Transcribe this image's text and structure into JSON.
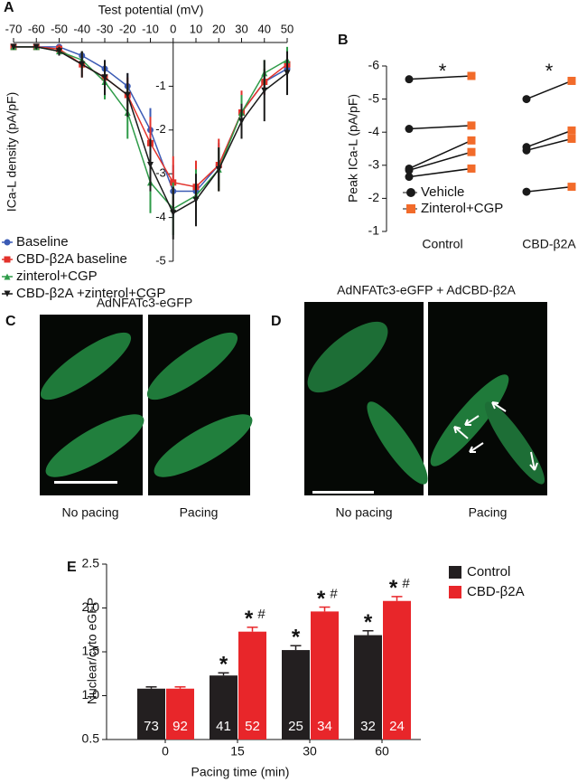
{
  "chart_data": [
    {
      "label": "A",
      "type": "line",
      "xlabel": "Test potential (mV)",
      "ylabel": "ICa-L density (pA/pF)",
      "x": [
        -70,
        -60,
        -50,
        -40,
        -30,
        -20,
        -10,
        0,
        10,
        20,
        30,
        40,
        50
      ],
      "xlim": [
        -70,
        50
      ],
      "xticks": [
        -70,
        -60,
        -50,
        -40,
        -30,
        -20,
        -10,
        0,
        10,
        20,
        30,
        40,
        50
      ],
      "ylim": [
        -5,
        0
      ],
      "yticks": [
        -1,
        -2,
        -3,
        -4,
        -5
      ],
      "series": [
        {
          "name": "Baseline",
          "color": "#3b5bb5",
          "marker": "circle",
          "values": [
            -0.1,
            -0.1,
            -0.1,
            -0.3,
            -0.6,
            -1.0,
            -2.0,
            -3.4,
            -3.4,
            -2.8,
            -1.6,
            -0.9,
            -0.6
          ],
          "errors": [
            0.05,
            0.05,
            0.05,
            0.1,
            0.2,
            0.3,
            0.5,
            0.6,
            0.5,
            0.5,
            0.4,
            0.3,
            0.2
          ]
        },
        {
          "name": "CBD-β2A baseline",
          "color": "#e3322b",
          "marker": "square",
          "values": [
            -0.1,
            -0.1,
            -0.15,
            -0.5,
            -0.8,
            -1.2,
            -2.3,
            -3.2,
            -3.3,
            -2.8,
            -1.6,
            -0.9,
            -0.5
          ],
          "errors": [
            0.05,
            0.05,
            0.1,
            0.3,
            0.3,
            0.4,
            0.6,
            0.6,
            0.6,
            0.6,
            0.5,
            0.3,
            0.3
          ]
        },
        {
          "name": "zinterol+CGP",
          "color": "#2e9b48",
          "marker": "triangle",
          "values": [
            -0.1,
            -0.1,
            -0.2,
            -0.4,
            -0.9,
            -1.6,
            -3.2,
            -3.8,
            -3.5,
            -2.9,
            -1.6,
            -0.7,
            -0.4
          ],
          "errors": [
            0.05,
            0.05,
            0.1,
            0.2,
            0.4,
            0.6,
            0.7,
            0.6,
            0.6,
            0.5,
            0.4,
            0.3,
            0.3
          ]
        },
        {
          "name": "CBD-β2A +zinterol+CGP",
          "color": "#1a1a1a",
          "marker": "invtriangle",
          "values": [
            -0.1,
            -0.1,
            -0.2,
            -0.5,
            -0.8,
            -1.2,
            -2.8,
            -3.9,
            -3.6,
            -2.9,
            -1.8,
            -1.1,
            -0.7
          ],
          "errors": [
            0.05,
            0.05,
            0.1,
            0.3,
            0.4,
            0.5,
            0.6,
            0.6,
            0.6,
            0.5,
            0.4,
            0.7,
            0.5
          ]
        }
      ]
    },
    {
      "label": "B",
      "type": "paired-dot",
      "ylabel": "Peak ICa-L (pA/pF)",
      "categories": [
        "Control",
        "CBD-β2A"
      ],
      "ylim": [
        -1,
        -6
      ],
      "yticks": [
        -6,
        -5,
        -4,
        -3,
        -2,
        -1
      ],
      "significance": [
        "*",
        "*"
      ],
      "series": [
        {
          "name": "Vehicle",
          "color": "#1a1a1a",
          "marker": "circle",
          "values": [
            [
              -5.6,
              -4.1,
              -2.9,
              -2.85,
              -2.65
            ],
            [
              -5.0,
              -3.55,
              -3.45,
              -2.2
            ]
          ]
        },
        {
          "name": "Zinterol+CGP",
          "color": "#f26b2a",
          "marker": "square",
          "values": [
            [
              -5.7,
              -4.2,
              -3.75,
              -3.4,
              -2.9
            ],
            [
              -5.55,
              -4.05,
              -3.8,
              -2.35
            ]
          ]
        }
      ]
    },
    {
      "label": "E",
      "type": "bar",
      "xlabel": "Pacing time (min)",
      "ylabel": "Nuclear/cyto eGFP",
      "categories": [
        "0",
        "15",
        "30",
        "60"
      ],
      "ylim": [
        0.5,
        2.5
      ],
      "yticks": [
        0.5,
        {
          "value": 1.0,
          "label": "1.0"
        },
        1.5,
        {
          "value": 2.0,
          "label": "2.0"
        },
        2.5
      ],
      "series": [
        {
          "name": "Control",
          "color": "#231f20",
          "values": [
            1.08,
            1.23,
            1.52,
            1.69
          ],
          "errors": [
            0.02,
            0.03,
            0.05,
            0.05
          ],
          "n": [
            "73",
            "41",
            "25",
            "32"
          ],
          "stars": [
            null,
            "*",
            "*",
            "*"
          ]
        },
        {
          "name": "CBD-β2A",
          "color": "#e8262a",
          "values": [
            1.08,
            1.73,
            1.96,
            2.08
          ],
          "errors": [
            0.02,
            0.05,
            0.05,
            0.05
          ],
          "n": [
            "92",
            "52",
            "34",
            "24"
          ],
          "stars": [
            null,
            "*",
            "*",
            "*"
          ],
          "hash": [
            null,
            "#",
            "#",
            "#"
          ]
        }
      ]
    }
  ],
  "images": [
    {
      "label": "C",
      "title": "AdNFATc3-eGFP",
      "panels": [
        "No pacing",
        "Pacing"
      ]
    },
    {
      "label": "D",
      "title": "AdNFATc3-eGFP + AdCBD-β2A",
      "panels": [
        "No pacing",
        "Pacing"
      ]
    }
  ]
}
